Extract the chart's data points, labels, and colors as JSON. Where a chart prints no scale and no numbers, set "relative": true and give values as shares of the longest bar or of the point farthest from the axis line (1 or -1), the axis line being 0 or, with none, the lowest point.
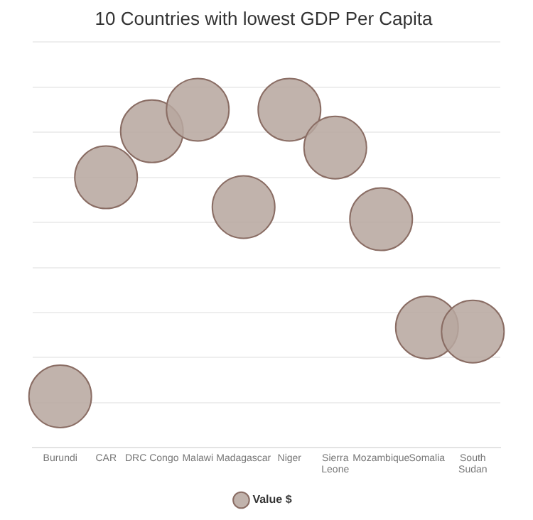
{
  "chart_data": {
    "type": "bubble",
    "title": "10 Countries with lowest GDP Per Capita",
    "categories": [
      "Burundi",
      "CAR",
      "DRC Congo",
      "Malawi",
      "Madagascar",
      "Niger",
      "Sierra Leone",
      "Mozambique",
      "Somalia",
      "South Sudan"
    ],
    "series": [
      {
        "name": "Value $",
        "color": "#b8a79f",
        "values": [
          0.152,
          0.8,
          0.936,
          1,
          0.712,
          1,
          0.888,
          0.676,
          0.356,
          0.344
        ],
        "sizes": [
          1,
          1,
          1,
          1,
          1,
          1,
          1,
          1,
          1,
          1
        ]
      }
    ],
    "relative": true,
    "grid": "y",
    "legend": "bottom"
  }
}
